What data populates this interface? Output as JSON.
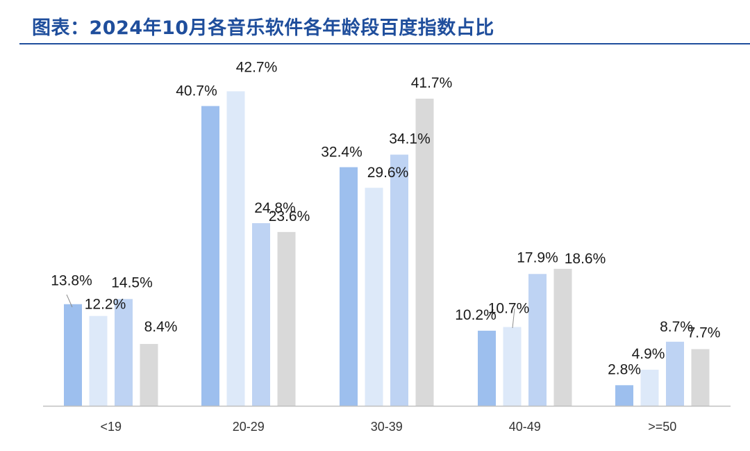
{
  "title": "图表：2024年10月各音乐软件各年龄段百度指数占比",
  "chart_data": {
    "type": "bar",
    "categories": [
      "<19",
      "20-29",
      "30-39",
      "40-49",
      ">=50"
    ],
    "series": [
      {
        "values": [
          13.8,
          40.7,
          32.4,
          10.2,
          2.8
        ],
        "labels": [
          "13.8%",
          "40.7%",
          "32.4%",
          "10.2%",
          "2.8%"
        ],
        "color": "#9dbfee"
      },
      {
        "values": [
          12.2,
          42.7,
          29.6,
          10.7,
          4.9
        ],
        "labels": [
          "12.2%",
          "42.7%",
          "29.6%",
          "10.7%",
          "4.9%"
        ],
        "color": "#dde9f9"
      },
      {
        "values": [
          14.5,
          24.8,
          34.1,
          17.9,
          8.7
        ],
        "labels": [
          "14.5%",
          "24.8%",
          "34.1%",
          "17.9%",
          "8.7%"
        ],
        "color": "#bed3f3"
      },
      {
        "values": [
          8.4,
          23.6,
          41.7,
          18.6,
          7.7
        ],
        "labels": [
          "8.4%",
          "23.6%",
          "41.7%",
          "18.6%",
          "7.7%"
        ],
        "color": "#d9d9d9"
      }
    ],
    "ylim": [
      0,
      45
    ],
    "grid": false,
    "legend": "none",
    "axis_color": "#bfbfbf"
  }
}
